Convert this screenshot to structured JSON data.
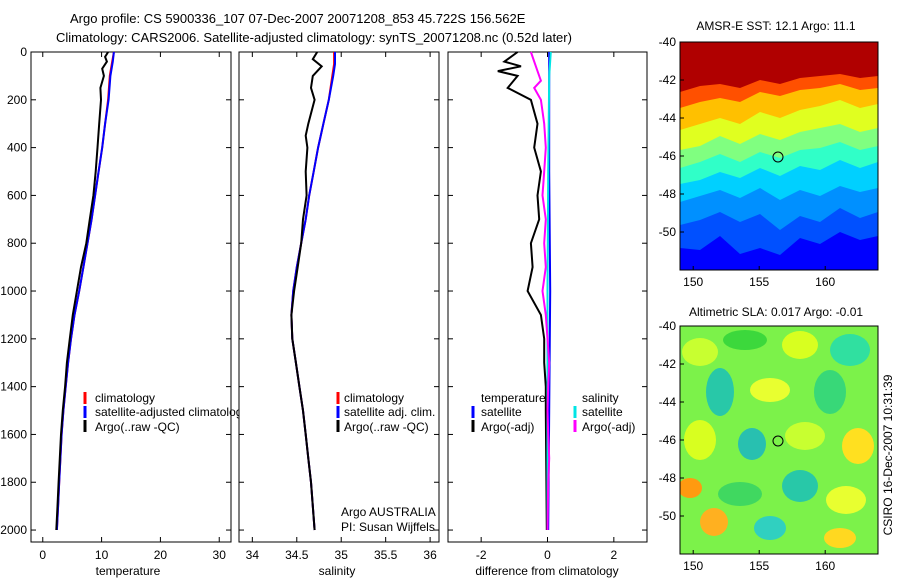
{
  "header": {
    "line1": "Argo profile: CS 5900336_107 07-Dec-2007 20071208_853 45.722S 156.562E",
    "line2": "Climatology: CARS2006. Satellite-adjusted climatology: synTS_20071208.nc (0.52d later)"
  },
  "footer": {
    "argo_country": "Argo AUSTRALIA",
    "pi": "PI: Susan Wijffels",
    "stamp": "CSIRO 16-Dec-2007 10:31:39"
  },
  "colors": {
    "climatology": "#ff0000",
    "satellite": "#0000ff",
    "argo": "#000000",
    "sal_satellite": "#00e5e5",
    "sal_argo": "#ff00ff",
    "map_marker": "#000000"
  },
  "chart_data": [
    {
      "type": "line",
      "xlabel": "temperature",
      "ylabel": "",
      "xlim": [
        -2,
        32
      ],
      "ylim": [
        2050,
        0
      ],
      "x_ticks": [
        0,
        10,
        20,
        30
      ],
      "y_ticks": [
        0,
        200,
        400,
        600,
        800,
        1000,
        1200,
        1400,
        1600,
        1800,
        2000
      ],
      "legend": [
        "climatology",
        "satellite-adjusted climatology",
        "Argo(..raw -QC)"
      ],
      "legend_position": "lower-right",
      "series": [
        {
          "name": "climatology",
          "color": "#ff0000",
          "points": [
            [
              12.1,
              0
            ],
            [
              11.8,
              40
            ],
            [
              11.4,
              100
            ],
            [
              11.1,
              200
            ],
            [
              10.6,
              300
            ],
            [
              10.1,
              400
            ],
            [
              9.5,
              500
            ],
            [
              8.9,
              600
            ],
            [
              8.3,
              700
            ],
            [
              7.6,
              800
            ],
            [
              6.9,
              900
            ],
            [
              6.2,
              1000
            ],
            [
              5.4,
              1100
            ],
            [
              4.8,
              1200
            ],
            [
              4.3,
              1300
            ],
            [
              3.9,
              1400
            ],
            [
              3.5,
              1500
            ],
            [
              3.2,
              1600
            ],
            [
              3.0,
              1700
            ],
            [
              2.8,
              1800
            ],
            [
              2.6,
              1900
            ],
            [
              2.4,
              2000
            ]
          ]
        },
        {
          "name": "satellite-adjusted climatology",
          "color": "#0000ff",
          "points": [
            [
              12.1,
              0
            ],
            [
              11.9,
              40
            ],
            [
              11.5,
              100
            ],
            [
              11.2,
              200
            ],
            [
              10.6,
              300
            ],
            [
              10.1,
              400
            ],
            [
              9.5,
              500
            ],
            [
              8.9,
              600
            ],
            [
              8.3,
              700
            ],
            [
              7.6,
              800
            ],
            [
              6.9,
              900
            ],
            [
              6.2,
              1000
            ],
            [
              5.4,
              1100
            ],
            [
              4.8,
              1200
            ],
            [
              4.3,
              1300
            ],
            [
              3.9,
              1400
            ],
            [
              3.5,
              1500
            ],
            [
              3.2,
              1600
            ],
            [
              3.0,
              1700
            ],
            [
              2.8,
              1800
            ],
            [
              2.6,
              1900
            ],
            [
              2.4,
              2000
            ]
          ]
        },
        {
          "name": "Argo(..raw -QC)",
          "color": "#000000",
          "points": [
            [
              11.1,
              0
            ],
            [
              10.6,
              20
            ],
            [
              10.9,
              40
            ],
            [
              10.1,
              70
            ],
            [
              10.4,
              100
            ],
            [
              9.8,
              150
            ],
            [
              9.9,
              200
            ],
            [
              9.6,
              300
            ],
            [
              9.3,
              400
            ],
            [
              9.0,
              500
            ],
            [
              8.6,
              600
            ],
            [
              8.0,
              700
            ],
            [
              7.4,
              800
            ],
            [
              6.5,
              900
            ],
            [
              5.8,
              1000
            ],
            [
              5.1,
              1100
            ],
            [
              4.6,
              1200
            ],
            [
              4.1,
              1300
            ],
            [
              3.8,
              1400
            ],
            [
              3.4,
              1500
            ],
            [
              3.1,
              1600
            ],
            [
              2.9,
              1700
            ],
            [
              2.7,
              1800
            ],
            [
              2.5,
              1900
            ],
            [
              2.3,
              2000
            ]
          ]
        }
      ]
    },
    {
      "type": "line",
      "xlabel": "salinity",
      "ylabel": "",
      "xlim": [
        33.85,
        36.1
      ],
      "ylim": [
        2050,
        0
      ],
      "x_ticks": [
        34,
        34.5,
        35,
        35.5,
        36
      ],
      "legend": [
        "climatology",
        "satellite adj. clim.",
        "Argo(..raw -QC)"
      ],
      "legend_position": "lower-right",
      "series": [
        {
          "name": "climatology",
          "color": "#ff0000",
          "points": [
            [
              34.92,
              0
            ],
            [
              34.92,
              50
            ],
            [
              34.9,
              100
            ],
            [
              34.86,
              200
            ],
            [
              34.8,
              300
            ],
            [
              34.74,
              400
            ],
            [
              34.69,
              500
            ],
            [
              34.64,
              600
            ],
            [
              34.6,
              700
            ],
            [
              34.55,
              800
            ],
            [
              34.5,
              900
            ],
            [
              34.46,
              1000
            ],
            [
              34.44,
              1100
            ],
            [
              34.45,
              1200
            ],
            [
              34.49,
              1300
            ],
            [
              34.53,
              1400
            ],
            [
              34.57,
              1500
            ],
            [
              34.6,
              1600
            ],
            [
              34.63,
              1700
            ],
            [
              34.66,
              1800
            ],
            [
              34.68,
              1900
            ],
            [
              34.7,
              2000
            ]
          ]
        },
        {
          "name": "satellite adj. clim.",
          "color": "#0000ff",
          "points": [
            [
              34.93,
              0
            ],
            [
              34.93,
              50
            ],
            [
              34.91,
              100
            ],
            [
              34.86,
              200
            ],
            [
              34.8,
              300
            ],
            [
              34.74,
              400
            ],
            [
              34.69,
              500
            ],
            [
              34.64,
              600
            ],
            [
              34.6,
              700
            ],
            [
              34.55,
              800
            ],
            [
              34.5,
              900
            ],
            [
              34.46,
              1000
            ],
            [
              34.44,
              1100
            ],
            [
              34.45,
              1200
            ],
            [
              34.49,
              1300
            ],
            [
              34.53,
              1400
            ],
            [
              34.57,
              1500
            ],
            [
              34.6,
              1600
            ],
            [
              34.63,
              1700
            ],
            [
              34.66,
              1800
            ],
            [
              34.68,
              1900
            ],
            [
              34.7,
              2000
            ]
          ]
        },
        {
          "name": "Argo(..raw -QC)",
          "color": "#000000",
          "points": [
            [
              34.73,
              0
            ],
            [
              34.68,
              30
            ],
            [
              34.78,
              60
            ],
            [
              34.68,
              100
            ],
            [
              34.66,
              150
            ],
            [
              34.7,
              200
            ],
            [
              34.63,
              300
            ],
            [
              34.6,
              350
            ],
            [
              34.62,
              400
            ],
            [
              34.6,
              500
            ],
            [
              34.61,
              600
            ],
            [
              34.57,
              700
            ],
            [
              34.55,
              800
            ],
            [
              34.51,
              900
            ],
            [
              34.47,
              1000
            ],
            [
              34.44,
              1100
            ],
            [
              34.45,
              1200
            ],
            [
              34.49,
              1300
            ],
            [
              34.53,
              1400
            ],
            [
              34.57,
              1500
            ],
            [
              34.6,
              1600
            ],
            [
              34.63,
              1700
            ],
            [
              34.66,
              1800
            ],
            [
              34.68,
              1900
            ],
            [
              34.7,
              2000
            ]
          ]
        }
      ]
    },
    {
      "type": "line",
      "xlabel": "difference from climatology",
      "ylabel": "",
      "xlim": [
        -3,
        3
      ],
      "ylim": [
        2050,
        0
      ],
      "x_ticks": [
        -2,
        0,
        2
      ],
      "legend_groups": [
        {
          "title": "temperature",
          "items": [
            "satellite",
            "Argo(-adj)"
          ]
        },
        {
          "title": "salinity",
          "items": [
            "satellite",
            "Argo(-adj)"
          ]
        }
      ],
      "legend_position": "lower-center",
      "series": [
        {
          "name": "satellite",
          "group": "temperature",
          "color": "#0000ff",
          "points": [
            [
              0.05,
              0
            ],
            [
              0.05,
              500
            ],
            [
              0.08,
              1000
            ],
            [
              0.05,
              1500
            ],
            [
              0.02,
              2000
            ]
          ]
        },
        {
          "name": "Argo(-adj)",
          "group": "temperature",
          "color": "#000000",
          "points": [
            [
              -0.9,
              0
            ],
            [
              -1.3,
              40
            ],
            [
              -0.8,
              60
            ],
            [
              -1.5,
              80
            ],
            [
              -0.9,
              100
            ],
            [
              -1.2,
              150
            ],
            [
              -0.5,
              200
            ],
            [
              -0.3,
              300
            ],
            [
              -0.4,
              400
            ],
            [
              -0.2,
              500
            ],
            [
              -0.3,
              600
            ],
            [
              -0.25,
              700
            ],
            [
              -0.5,
              800
            ],
            [
              -0.45,
              900
            ],
            [
              -0.6,
              1000
            ],
            [
              -0.2,
              1100
            ],
            [
              -0.1,
              1200
            ],
            [
              -0.1,
              1300
            ],
            [
              -0.05,
              1400
            ],
            [
              -0.05,
              1500
            ],
            [
              -0.02,
              2000
            ]
          ]
        },
        {
          "name": "satellite",
          "group": "salinity",
          "color": "#00e5e5",
          "points": [
            [
              0.1,
              0
            ],
            [
              0.05,
              100
            ],
            [
              0.02,
              500
            ],
            [
              0.0,
              1000
            ],
            [
              0.0,
              2000
            ]
          ]
        },
        {
          "name": "Argo(-adj)",
          "group": "salinity",
          "color": "#ff00ff",
          "points": [
            [
              -0.5,
              0
            ],
            [
              -0.3,
              80
            ],
            [
              -0.2,
              120
            ],
            [
              -0.4,
              150
            ],
            [
              -0.2,
              200
            ],
            [
              -0.1,
              300
            ],
            [
              -0.05,
              400
            ],
            [
              -0.1,
              500
            ],
            [
              -0.15,
              600
            ],
            [
              -0.05,
              700
            ],
            [
              -0.1,
              800
            ],
            [
              -0.05,
              900
            ],
            [
              -0.15,
              1000
            ],
            [
              -0.05,
              1100
            ],
            [
              0.0,
              1200
            ],
            [
              0.05,
              1300
            ],
            [
              0.02,
              1400
            ],
            [
              0.0,
              1500
            ],
            [
              0.02,
              1600
            ],
            [
              0.05,
              1700
            ],
            [
              0.02,
              1800
            ],
            [
              0.0,
              2000
            ]
          ]
        }
      ]
    },
    {
      "type": "heatmap",
      "title": "AMSR-E SST: 12.1 Argo: 11.1",
      "xlim": [
        149,
        164
      ],
      "ylim": [
        -52,
        -40
      ],
      "x_ticks": [
        150,
        155,
        160
      ],
      "y_ticks": [
        -40,
        -42,
        -44,
        -46,
        -48,
        -50
      ],
      "marker": {
        "lon": 156.562,
        "lat": -45.722
      },
      "colormap": "jet"
    },
    {
      "type": "heatmap",
      "title": "Altimetric SLA: 0.017 Argo: -0.01",
      "xlim": [
        149,
        164
      ],
      "ylim": [
        -52,
        -40
      ],
      "x_ticks": [
        150,
        155,
        160
      ],
      "y_ticks": [
        -40,
        -42,
        -44,
        -46,
        -48,
        -50
      ],
      "marker": {
        "lon": 156.562,
        "lat": -45.722
      },
      "colormap": "jet"
    }
  ]
}
